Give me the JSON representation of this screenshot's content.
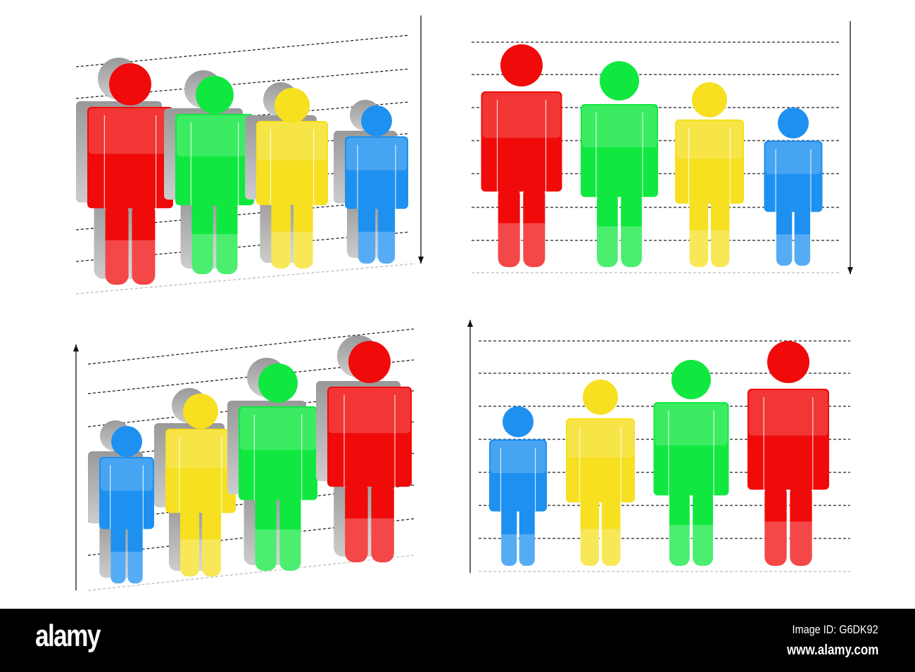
{
  "colors": {
    "red": "#f00a0a",
    "green": "#10e840",
    "yellow": "#f6e020",
    "blue": "#1e90f0",
    "shadow": "#8a8a8a"
  },
  "panels": [
    {
      "name": "top-left",
      "style": "3d",
      "arrow": "down",
      "order": [
        "red",
        "green",
        "yellow",
        "blue"
      ]
    },
    {
      "name": "top-right",
      "style": "flat",
      "arrow": "down",
      "order": [
        "red",
        "green",
        "yellow",
        "blue"
      ]
    },
    {
      "name": "bottom-left",
      "style": "3d",
      "arrow": "up",
      "order": [
        "blue",
        "yellow",
        "green",
        "red"
      ]
    },
    {
      "name": "bottom-right",
      "style": "flat",
      "arrow": "up",
      "order": [
        "blue",
        "yellow",
        "green",
        "red"
      ]
    }
  ],
  "footer": {
    "logo": "alamy",
    "image_id": "Image ID: G6DK92",
    "url": "www.alamy.com"
  }
}
